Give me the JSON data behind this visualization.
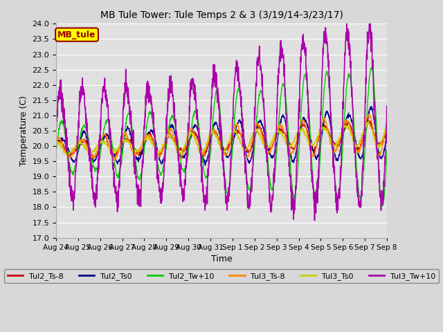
{
  "title": "MB Tule Tower: Tule Temps 2 & 3 (3/19/14-3/23/17)",
  "xlabel": "Time",
  "ylabel": "Temperature (C)",
  "ylim": [
    17.0,
    24.0
  ],
  "yticks": [
    17.0,
    17.5,
    18.0,
    18.5,
    19.0,
    19.5,
    20.0,
    20.5,
    21.0,
    21.5,
    22.0,
    22.5,
    23.0,
    23.5,
    24.0
  ],
  "xtick_labels": [
    "Aug 24",
    "Aug 25",
    "Aug 26",
    "Aug 27",
    "Aug 28",
    "Aug 29",
    "Aug 30",
    "Aug 31",
    "Sep 1",
    "Sep 2",
    "Sep 3",
    "Sep 4",
    "Sep 5",
    "Sep 6",
    "Sep 7",
    "Sep 8"
  ],
  "legend_label": "MB_tule",
  "legend_bg": "#ffff00",
  "legend_border": "#990000",
  "series": [
    {
      "name": "Tul2_Ts-8",
      "color": "#cc0000",
      "lw": 1.0
    },
    {
      "name": "Tul2_Ts0",
      "color": "#00008b",
      "lw": 1.0
    },
    {
      "name": "Tul2_Tw+10",
      "color": "#00cc00",
      "lw": 1.0
    },
    {
      "name": "Tul3_Ts-8",
      "color": "#ff8800",
      "lw": 1.0
    },
    {
      "name": "Tul3_Ts0",
      "color": "#cccc00",
      "lw": 1.0
    },
    {
      "name": "Tul3_Tw+10",
      "color": "#aa00aa",
      "lw": 1.2
    }
  ],
  "fig_bg": "#d8d8d8",
  "plot_bg": "#e0e0e0",
  "grid_color": "#ffffff",
  "n_points": 1500
}
